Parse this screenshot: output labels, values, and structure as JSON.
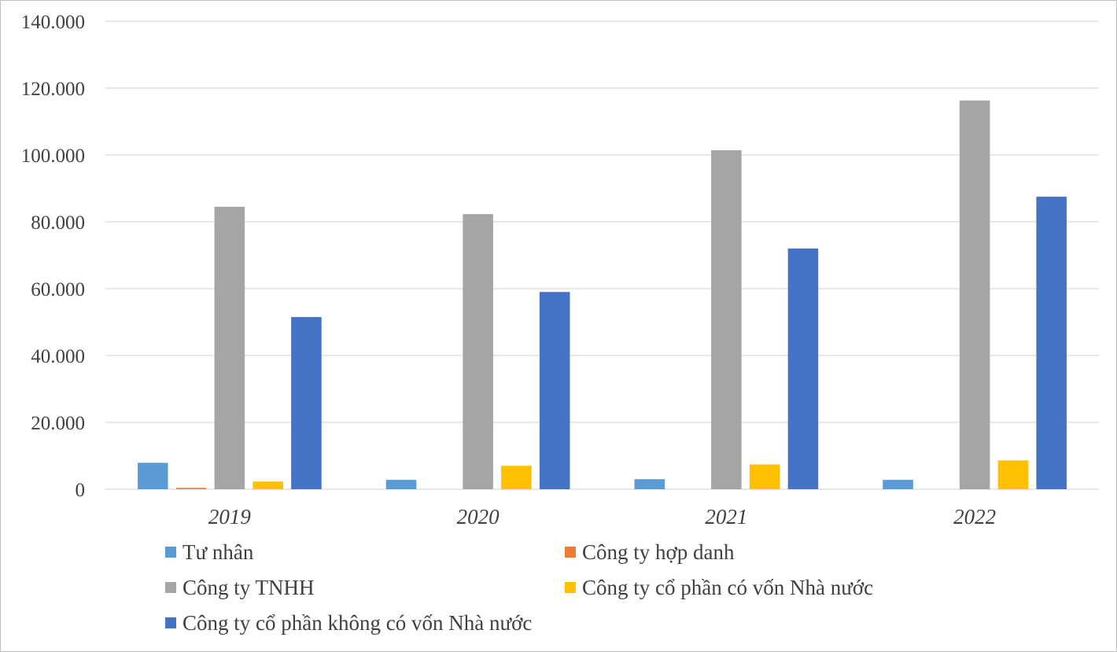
{
  "chart_data": {
    "type": "bar",
    "categories": [
      "2019",
      "2020",
      "2021",
      "2022"
    ],
    "series": [
      {
        "name": "Tư nhân",
        "color": "#5b9bd5",
        "values": [
          7900,
          2800,
          3000,
          2800
        ]
      },
      {
        "name": "Công ty hợp danh",
        "color": "#ed7d31",
        "values": [
          400,
          0,
          0,
          0
        ]
      },
      {
        "name": "Công ty TNHH",
        "color": "#a5a5a5",
        "values": [
          84500,
          82300,
          101400,
          116300
        ]
      },
      {
        "name": "Công ty cổ phần có vốn Nhà nước",
        "color": "#ffc000",
        "values": [
          2300,
          7000,
          7400,
          8600
        ]
      },
      {
        "name": "Công ty cổ phần không có vốn Nhà nước",
        "color": "#4472c4",
        "values": [
          51500,
          59000,
          72000,
          87500
        ]
      }
    ],
    "y_ticks": [
      "0",
      "20.000",
      "40.000",
      "60.000",
      "80.000",
      "100.000",
      "120.000",
      "140.000"
    ],
    "ylim": [
      0,
      140000
    ],
    "grid": true,
    "legend_position": "bottom"
  }
}
